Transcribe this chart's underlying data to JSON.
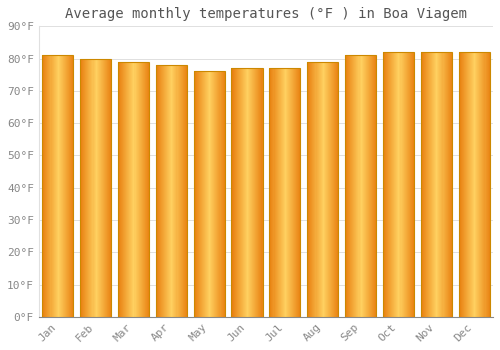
{
  "title": "Average monthly temperatures (°F ) in Boa Viagem",
  "months": [
    "Jan",
    "Feb",
    "Mar",
    "Apr",
    "May",
    "Jun",
    "Jul",
    "Aug",
    "Sep",
    "Oct",
    "Nov",
    "Dec"
  ],
  "values": [
    81,
    80,
    79,
    78,
    76,
    77,
    77,
    79,
    81,
    82,
    82,
    82
  ],
  "bar_color": "#FFA500",
  "bar_edge_color": "#CC8800",
  "bar_gradient_left": "#E8800A",
  "bar_gradient_center": "#FFB830",
  "background_color": "#FFFFFF",
  "plot_bg_color": "#FFFFFF",
  "grid_color": "#E0E0E0",
  "text_color": "#888888",
  "title_color": "#555555",
  "ylim": [
    0,
    90
  ],
  "yticks": [
    0,
    10,
    20,
    30,
    40,
    50,
    60,
    70,
    80,
    90
  ],
  "ytick_labels": [
    "0°F",
    "10°F",
    "20°F",
    "30°F",
    "40°F",
    "50°F",
    "60°F",
    "70°F",
    "80°F",
    "90°F"
  ],
  "title_fontsize": 10,
  "tick_fontsize": 8,
  "font_family": "monospace",
  "bar_width": 0.82
}
